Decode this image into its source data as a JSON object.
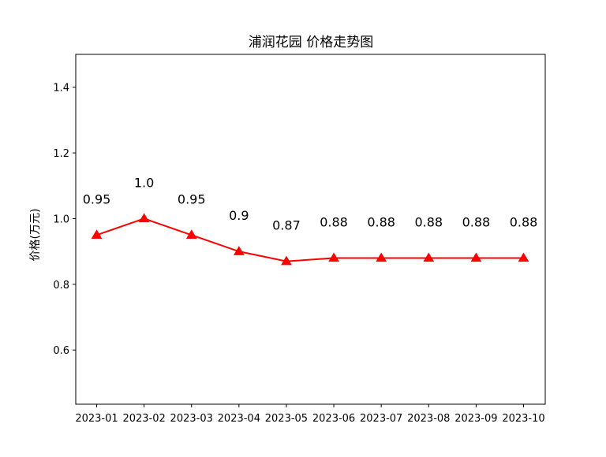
{
  "chart_data": {
    "type": "line",
    "title": "浦润花园 价格走势图",
    "xlabel": "",
    "ylabel": "价格(万元)",
    "categories": [
      "2023-01",
      "2023-02",
      "2023-03",
      "2023-04",
      "2023-05",
      "2023-06",
      "2023-07",
      "2023-08",
      "2023-09",
      "2023-10"
    ],
    "series": [
      {
        "values": [
          0.95,
          1.0,
          0.95,
          0.9,
          0.87,
          0.88,
          0.88,
          0.88,
          0.88,
          0.88
        ],
        "labels": [
          "0.95",
          "1.0",
          "0.95",
          "0.9",
          "0.87",
          "0.88",
          "0.88",
          "0.88",
          "0.88",
          "0.88"
        ],
        "color": "#ff0000",
        "marker": "triangle"
      }
    ],
    "ylim": [
      0.435,
      1.5
    ],
    "yticks": [
      0.6,
      0.8,
      1.0,
      1.2,
      1.4
    ],
    "ytick_labels": [
      "0.6",
      "0.8",
      "1.0",
      "1.2",
      "1.4"
    ],
    "grid": false,
    "legend": "none"
  }
}
